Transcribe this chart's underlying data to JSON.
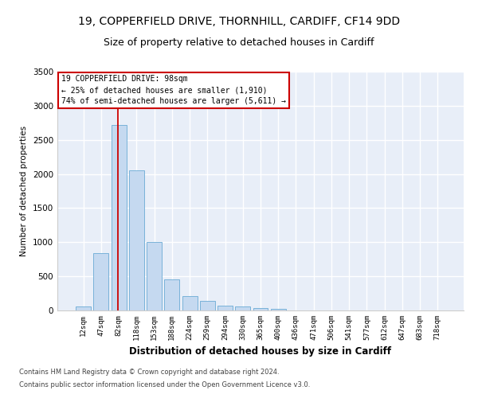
{
  "title1": "19, COPPERFIELD DRIVE, THORNHILL, CARDIFF, CF14 9DD",
  "title2": "Size of property relative to detached houses in Cardiff",
  "xlabel": "Distribution of detached houses by size in Cardiff",
  "ylabel": "Number of detached properties",
  "categories": [
    "12sqm",
    "47sqm",
    "82sqm",
    "118sqm",
    "153sqm",
    "188sqm",
    "224sqm",
    "259sqm",
    "294sqm",
    "330sqm",
    "365sqm",
    "400sqm",
    "436sqm",
    "471sqm",
    "506sqm",
    "541sqm",
    "577sqm",
    "612sqm",
    "647sqm",
    "683sqm",
    "718sqm"
  ],
  "values": [
    60,
    840,
    2720,
    2050,
    1000,
    450,
    210,
    140,
    75,
    60,
    30,
    20,
    5,
    3,
    2,
    1,
    0,
    0,
    0,
    0,
    0
  ],
  "bar_color": "#c5d9f0",
  "bar_edge_color": "#6aaad4",
  "vline_color": "#cc0000",
  "annotation_text": "19 COPPERFIELD DRIVE: 98sqm\n← 25% of detached houses are smaller (1,910)\n74% of semi-detached houses are larger (5,611) →",
  "annotation_box_color": "#ffffff",
  "annotation_box_edge": "#cc0000",
  "footnote1": "Contains HM Land Registry data © Crown copyright and database right 2024.",
  "footnote2": "Contains public sector information licensed under the Open Government Licence v3.0.",
  "ylim": [
    0,
    3500
  ],
  "yticks": [
    0,
    500,
    1000,
    1500,
    2000,
    2500,
    3000,
    3500
  ],
  "background_color": "#e8eef8",
  "grid_color": "#ffffff",
  "title1_fontsize": 10,
  "title2_fontsize": 9
}
